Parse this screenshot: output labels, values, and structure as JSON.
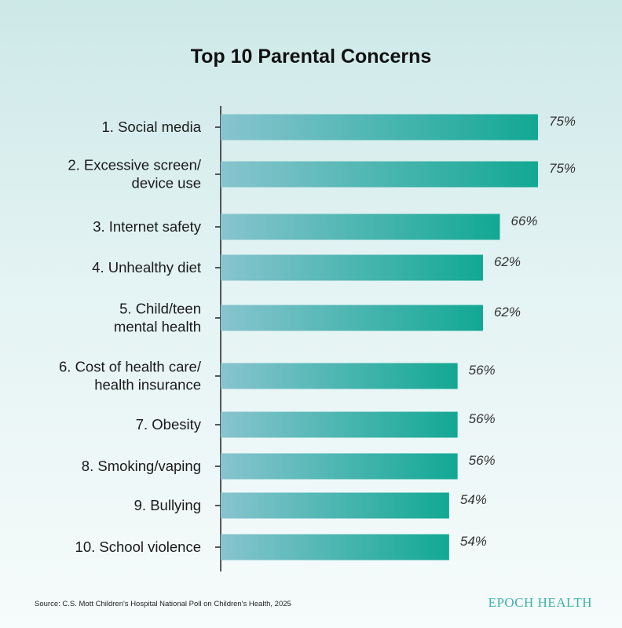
{
  "chart_data": {
    "type": "bar",
    "orientation": "horizontal",
    "title": "Top 10 Parental Concerns",
    "categories": [
      [
        "1. Social media"
      ],
      [
        "2. Excessive screen/",
        "device use"
      ],
      [
        "3. Internet safety"
      ],
      [
        "4. Unhealthy diet"
      ],
      [
        "5. Child/teen",
        "mental health"
      ],
      [
        "6. Cost of health care/",
        "health insurance"
      ],
      [
        "7. Obesity"
      ],
      [
        "8. Smoking/vaping"
      ],
      [
        "9. Bullying"
      ],
      [
        "10. School violence"
      ]
    ],
    "values": [
      75,
      75,
      66,
      62,
      62,
      56,
      56,
      56,
      54,
      54
    ],
    "value_labels": [
      "75%",
      "75%",
      "66%",
      "62%",
      "62%",
      "56%",
      "56%",
      "56%",
      "54%",
      "54%"
    ],
    "xlim": [
      0,
      100
    ],
    "grid": false,
    "bar_gradient": [
      "#88c4cf",
      "#12a893"
    ]
  },
  "footer": {
    "source": "Source: C.S. Mott Children's Hospital National Poll on Children's Health, 2025",
    "brand": "EPOCH HEALTH"
  }
}
